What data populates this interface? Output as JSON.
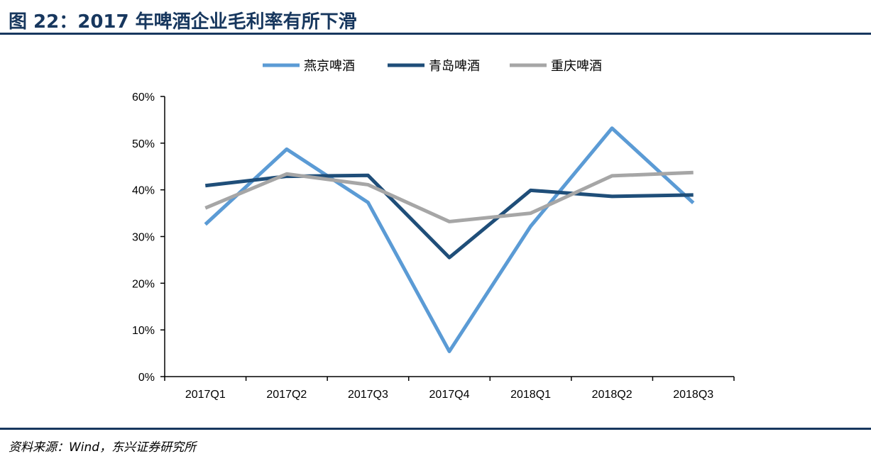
{
  "header": {
    "title": "图 22：2017 年啤酒企业毛利率有所下滑"
  },
  "footer": {
    "source": "资料来源：Wind，东兴证券研究所"
  },
  "colors": {
    "accent": "#17375e",
    "yanjing": "#5b9bd5",
    "qingdao": "#1f4e79",
    "chongqing": "#a6a6a6"
  },
  "chart_data": {
    "type": "line",
    "title": "",
    "xlabel": "",
    "ylabel": "",
    "categories": [
      "2017Q1",
      "2017Q2",
      "2017Q3",
      "2017Q4",
      "2018Q1",
      "2018Q2",
      "2018Q3"
    ],
    "yticks": [
      "0%",
      "10%",
      "20%",
      "30%",
      "40%",
      "50%",
      "60%"
    ],
    "ylim": [
      0,
      60
    ],
    "unit": "%",
    "grid": false,
    "legend": "top-center",
    "series": [
      {
        "name": "燕京啤酒",
        "color": "#5b9bd5",
        "values": [
          32.6,
          48.7,
          37.3,
          5.4,
          32.2,
          53.2,
          37.2
        ]
      },
      {
        "name": "青岛啤酒",
        "color": "#1f4e79",
        "values": [
          40.9,
          42.9,
          43.1,
          25.5,
          39.9,
          38.6,
          38.9
        ]
      },
      {
        "name": "重庆啤酒",
        "color": "#a6a6a6",
        "values": [
          36.1,
          43.4,
          41.1,
          33.2,
          35.0,
          43.0,
          43.7
        ]
      }
    ]
  }
}
